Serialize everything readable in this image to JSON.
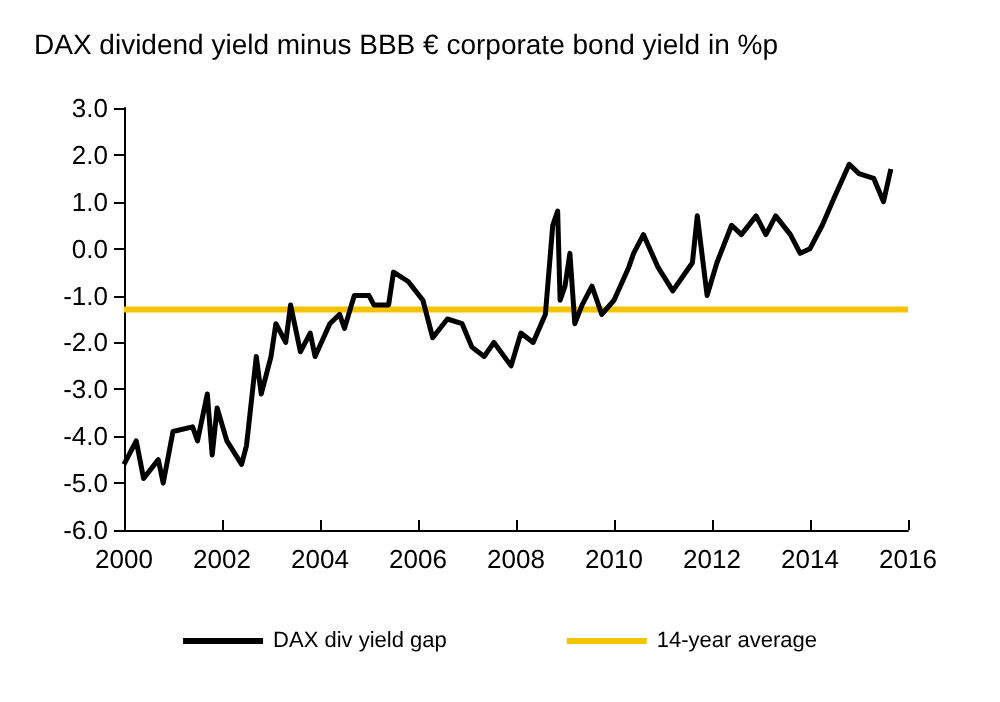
{
  "chart_data": {
    "type": "line",
    "title": "DAX dividend yield minus BBB € corporate bond yield in %p",
    "legend": "bottom",
    "grid": false,
    "marker": "none",
    "line_style": "solid",
    "xlim": [
      2000,
      2016
    ],
    "xticks": [
      2000,
      2002,
      2004,
      2006,
      2008,
      2010,
      2012,
      2014,
      2016
    ],
    "ylim": [
      -6,
      3
    ],
    "yticks": [
      {
        "value": -6,
        "label": "-6.0"
      },
      {
        "value": -5,
        "label": "-5.0"
      },
      {
        "value": -4,
        "label": "-4.0"
      },
      {
        "value": -3,
        "label": "-3.0"
      },
      {
        "value": -2,
        "label": "-2.0"
      },
      {
        "value": -1,
        "label": "-1.0"
      },
      {
        "value": 0,
        "label": "0.0"
      },
      {
        "value": 1,
        "label": "1.0"
      },
      {
        "value": 2,
        "label": "2.0"
      },
      {
        "value": 3,
        "label": "3.0"
      }
    ],
    "ref_lines": [
      {
        "axis": "y",
        "value": -1.3,
        "label": "14-year average",
        "color": "#f5c400",
        "line_style": "solid"
      }
    ],
    "series": [
      {
        "name": "DAX div yield gap",
        "color": "#000000",
        "x": [
          2000.0,
          2000.25,
          2000.4,
          2000.7,
          2000.8,
          2001.0,
          2001.4,
          2001.5,
          2001.7,
          2001.8,
          2001.9,
          2002.1,
          2002.4,
          2002.5,
          2002.7,
          2002.8,
          2003.0,
          2003.1,
          2003.3,
          2003.4,
          2003.6,
          2003.8,
          2003.9,
          2004.2,
          2004.4,
          2004.5,
          2004.7,
          2005.0,
          2005.1,
          2005.4,
          2005.5,
          2005.8,
          2006.1,
          2006.3,
          2006.6,
          2006.9,
          2007.1,
          2007.35,
          2007.55,
          2007.9,
          2008.1,
          2008.35,
          2008.6,
          2008.75,
          2008.85,
          2008.9,
          2009.0,
          2009.1,
          2009.2,
          2009.35,
          2009.55,
          2009.75,
          2010.0,
          2010.3,
          2010.4,
          2010.6,
          2010.9,
          2011.2,
          2011.4,
          2011.6,
          2011.7,
          2011.9,
          2012.1,
          2012.4,
          2012.6,
          2012.9,
          2013.1,
          2013.3,
          2013.6,
          2013.8,
          2014.0,
          2014.25,
          2014.5,
          2014.8,
          2015.0,
          2015.3,
          2015.5,
          2015.65
        ],
        "values": [
          -4.6,
          -4.1,
          -4.9,
          -4.5,
          -5.0,
          -3.9,
          -3.8,
          -4.1,
          -3.1,
          -4.4,
          -3.4,
          -4.1,
          -4.6,
          -4.2,
          -2.3,
          -3.1,
          -2.3,
          -1.6,
          -2.0,
          -1.2,
          -2.2,
          -1.8,
          -2.3,
          -1.6,
          -1.4,
          -1.7,
          -1.0,
          -1.0,
          -1.2,
          -1.2,
          -0.5,
          -0.7,
          -1.1,
          -1.9,
          -1.5,
          -1.6,
          -2.1,
          -2.3,
          -2.0,
          -2.5,
          -1.8,
          -2.0,
          -1.4,
          0.5,
          0.8,
          -1.1,
          -0.8,
          -0.1,
          -1.6,
          -1.2,
          -0.8,
          -1.4,
          -1.1,
          -0.4,
          -0.1,
          0.3,
          -0.4,
          -0.9,
          -0.6,
          -0.3,
          0.7,
          -1.0,
          -0.3,
          0.5,
          0.3,
          0.7,
          0.3,
          0.7,
          0.3,
          -0.1,
          0.0,
          0.5,
          1.1,
          1.8,
          1.6,
          1.5,
          1.0,
          1.7
        ]
      }
    ]
  }
}
